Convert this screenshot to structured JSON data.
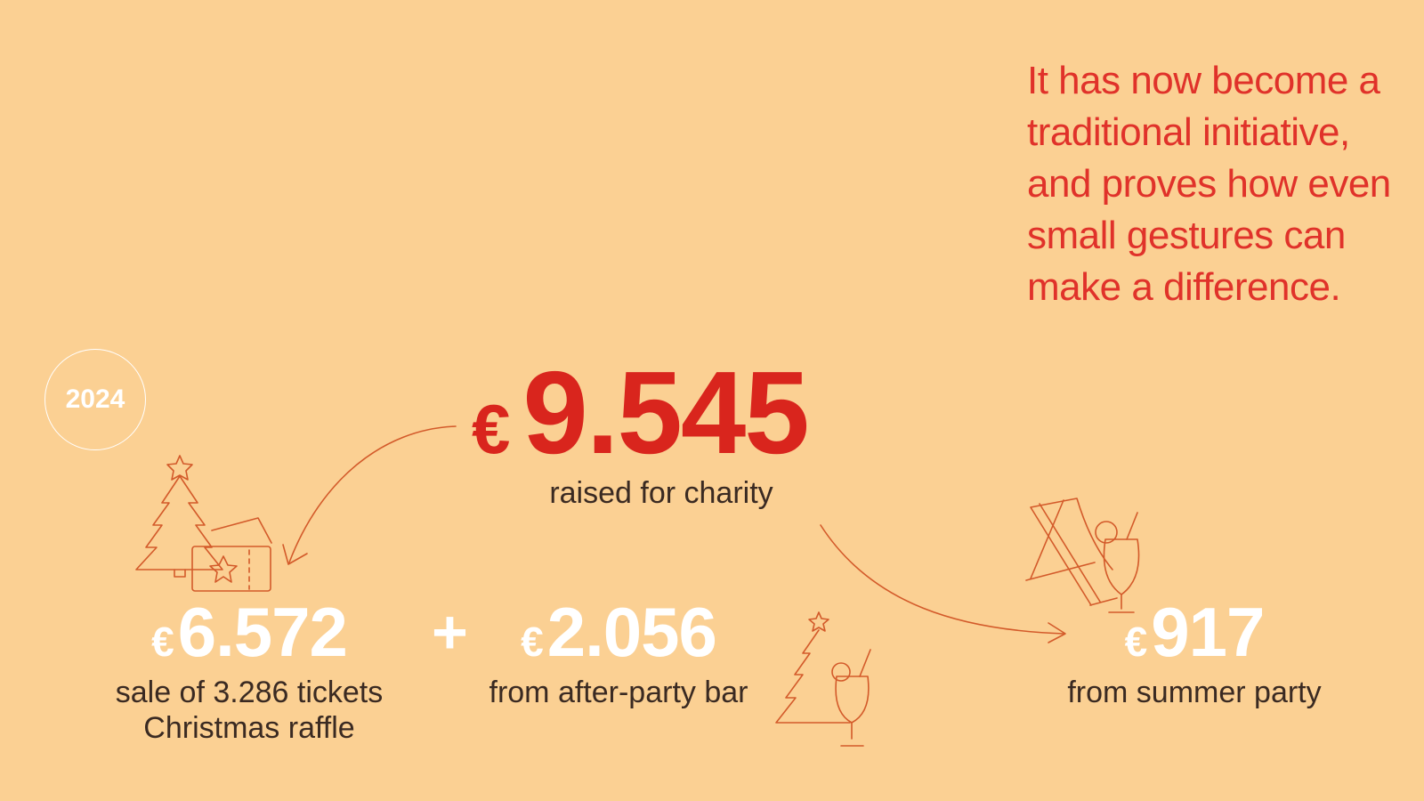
{
  "quote": "It has now become a traditional initiative, and proves how even small gestures can make a difference.",
  "year_badge": "2024",
  "total": {
    "currency": "€",
    "amount": "9.545",
    "label": "raised for charity"
  },
  "breakdown": [
    {
      "currency": "€",
      "amount": "6.572",
      "label_line1": "sale of 3.286 tickets",
      "label_line2": "Christmas raffle",
      "icon": "christmas-tree-ticket-icon"
    },
    {
      "currency": "€",
      "amount": "2.056",
      "label_line1": "from after-party bar",
      "icon": "christmas-tree-cocktail-icon"
    },
    {
      "currency": "€",
      "amount": "917",
      "label_line1": "from summer party",
      "icon": "deck-chair-cocktail-icon"
    }
  ],
  "operator": "+",
  "colors": {
    "background": "#FBD093",
    "accent": "#D9251D",
    "line": "#D35A2A",
    "white": "#FFFFFF"
  }
}
